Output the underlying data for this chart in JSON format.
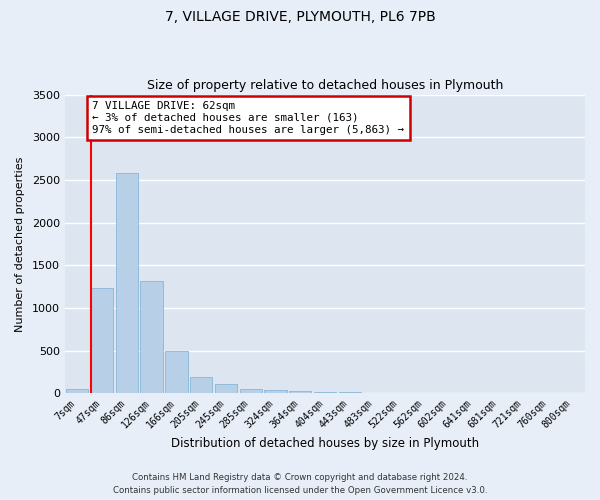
{
  "title1": "7, VILLAGE DRIVE, PLYMOUTH, PL6 7PB",
  "title2": "Size of property relative to detached houses in Plymouth",
  "xlabel": "Distribution of detached houses by size in Plymouth",
  "ylabel": "Number of detached properties",
  "categories": [
    "7sqm",
    "47sqm",
    "86sqm",
    "126sqm",
    "166sqm",
    "205sqm",
    "245sqm",
    "285sqm",
    "324sqm",
    "364sqm",
    "404sqm",
    "443sqm",
    "483sqm",
    "522sqm",
    "562sqm",
    "602sqm",
    "641sqm",
    "681sqm",
    "721sqm",
    "760sqm",
    "800sqm"
  ],
  "values": [
    50,
    1230,
    2580,
    1310,
    490,
    195,
    105,
    55,
    35,
    20,
    15,
    10,
    8,
    4,
    3,
    2,
    2,
    1,
    1,
    1,
    1
  ],
  "bar_color": "#b8cfe8",
  "bar_edge_color": "#7aafd4",
  "bg_color": "#dde6f0",
  "grid_color": "#ffffff",
  "red_line_index": 1,
  "annotation_text": "7 VILLAGE DRIVE: 62sqm\n← 3% of detached houses are smaller (163)\n97% of semi-detached houses are larger (5,863) →",
  "annotation_box_color": "#ffffff",
  "annotation_box_edge": "#cc0000",
  "ylim": [
    0,
    3500
  ],
  "yticks": [
    0,
    500,
    1000,
    1500,
    2000,
    2500,
    3000,
    3500
  ],
  "footer1": "Contains HM Land Registry data © Crown copyright and database right 2024.",
  "footer2": "Contains public sector information licensed under the Open Government Licence v3.0.",
  "fig_bg_color": "#e8eef8"
}
